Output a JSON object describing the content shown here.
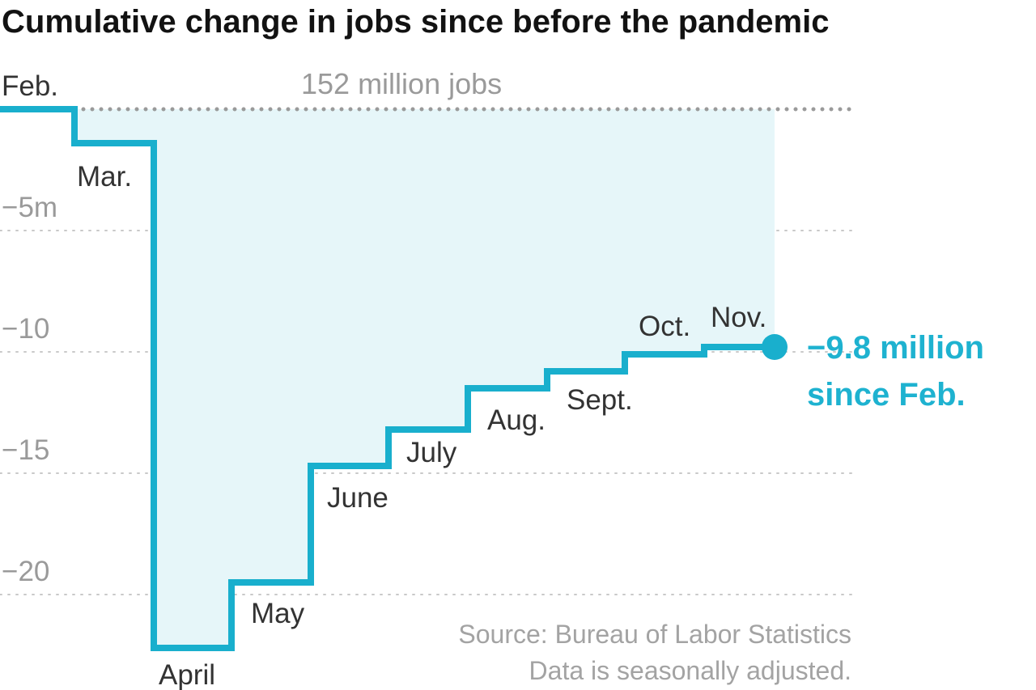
{
  "title": "Cumulative change in jobs since before the pandemic",
  "baseline_label": "152 million jobs",
  "callout": [
    "−9.8 million",
    "since Feb."
  ],
  "source": "Source: Bureau of Labor Statistics",
  "note": "Data is seasonally adjusted.",
  "colors": {
    "line": "#19afcd",
    "fill": "#e6f6f9",
    "grid": "#c9c9c9",
    "baseline": "#9a9a9a",
    "callout": "#1eb2d0"
  },
  "chart_data": {
    "type": "line",
    "step": true,
    "area_fill": true,
    "title": "Cumulative change in jobs since before the pandemic",
    "xlabel": "",
    "ylabel": "",
    "ylim": [
      -22.2,
      0
    ],
    "yticks": [
      {
        "value": -5,
        "label": "−5m"
      },
      {
        "value": -10,
        "label": "−10"
      },
      {
        "value": -15,
        "label": "−15"
      },
      {
        "value": -20,
        "label": "−20"
      }
    ],
    "grid": true,
    "series": [
      {
        "categories": [
          "Feb.",
          "Mar.",
          "April",
          "May",
          "June",
          "July",
          "Aug.",
          "Sept.",
          "Oct.",
          "Nov."
        ],
        "values": [
          0,
          -1.4,
          -22.2,
          -19.5,
          -14.7,
          -13.2,
          -11.5,
          -10.8,
          -10.1,
          -9.8
        ]
      }
    ]
  }
}
